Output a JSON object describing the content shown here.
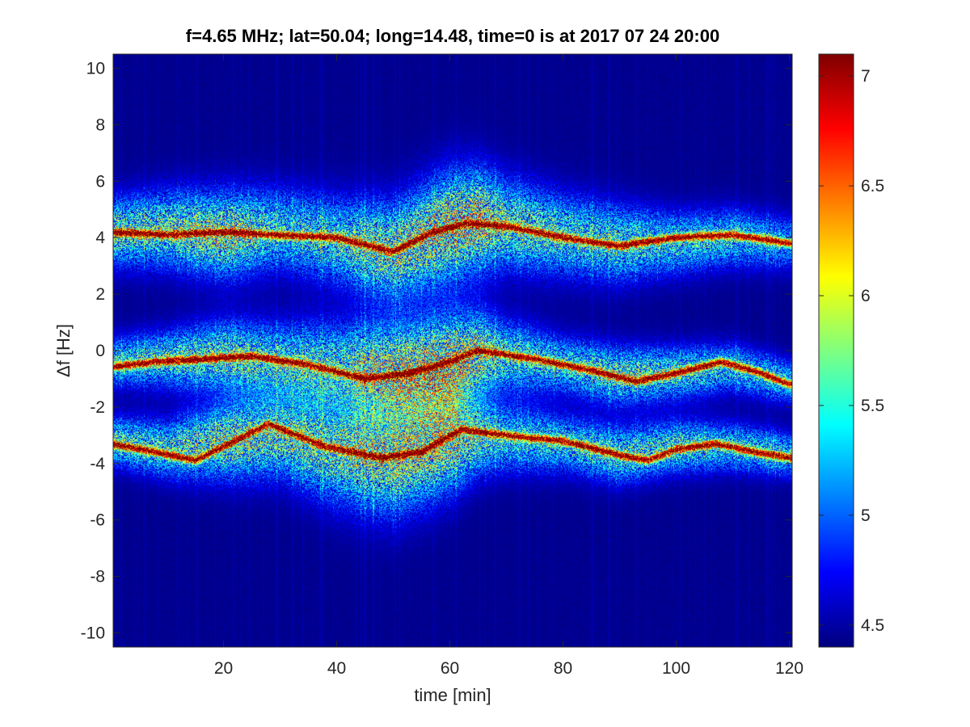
{
  "chart_data": {
    "type": "heatmap",
    "title": "f=4.65 MHz;  lat=50.04; long=14.48, time=0 is at 2017 07 24 20:00",
    "xlabel": "time [min]",
    "ylabel": "Δf [Hz]",
    "xlim": [
      0.5,
      120.5
    ],
    "ylim": [
      -10.5,
      10.5
    ],
    "x_ticks": [
      20,
      40,
      60,
      80,
      100,
      120
    ],
    "y_ticks": [
      -10,
      -8,
      -6,
      -4,
      -2,
      0,
      2,
      4,
      6,
      8,
      10
    ],
    "colorbar": {
      "colormap": "jet",
      "range": [
        4.4,
        7.1
      ],
      "ticks": [
        4.5,
        5,
        5.5,
        6,
        6.5,
        7
      ]
    },
    "traces": [
      {
        "x": [
          0,
          10,
          20,
          28,
          40,
          50,
          57,
          63,
          70,
          80,
          90,
          100,
          110,
          120
        ],
        "y": [
          4.2,
          4.1,
          4.2,
          4.1,
          4.0,
          3.5,
          4.2,
          4.5,
          4.4,
          4.0,
          3.7,
          4.0,
          4.1,
          3.8
        ]
      },
      {
        "x": [
          0,
          8,
          17,
          25,
          35,
          45,
          53,
          60,
          65,
          75,
          85,
          93,
          100,
          108,
          115,
          120
        ],
        "y": [
          -0.6,
          -0.4,
          -0.3,
          -0.2,
          -0.5,
          -1.0,
          -0.8,
          -0.4,
          0.0,
          -0.3,
          -0.7,
          -1.1,
          -0.8,
          -0.4,
          -0.8,
          -1.2
        ]
      },
      {
        "x": [
          0,
          8,
          15,
          22,
          28,
          38,
          48,
          55,
          62,
          70,
          80,
          90,
          95,
          100,
          107,
          114,
          120
        ],
        "y": [
          -3.3,
          -3.6,
          -3.9,
          -3.2,
          -2.6,
          -3.4,
          -3.8,
          -3.6,
          -2.8,
          -3.0,
          -3.2,
          -3.7,
          -3.9,
          -3.5,
          -3.3,
          -3.6,
          -3.8
        ]
      }
    ],
    "cloud": [
      {
        "x": [
          0,
          10,
          20,
          30,
          40,
          50,
          60,
          65,
          70,
          80,
          90,
          100,
          110,
          120
        ],
        "center": [
          4.2,
          4.3,
          4.1,
          4.3,
          3.9,
          3.5,
          4.4,
          4.6,
          4.5,
          4.1,
          3.8,
          3.8,
          4.0,
          3.8
        ],
        "halfwidth": [
          1.4,
          1.6,
          1.8,
          1.7,
          1.8,
          2.1,
          2.3,
          2.2,
          1.9,
          1.7,
          1.6,
          1.3,
          1.2,
          1.1
        ],
        "strength": [
          0.55,
          0.55,
          0.65,
          0.45,
          0.5,
          0.6,
          0.7,
          0.7,
          0.55,
          0.5,
          0.5,
          0.45,
          0.45,
          0.35
        ]
      },
      {
        "x": [
          0,
          10,
          20,
          30,
          40,
          50,
          60,
          65,
          70,
          80,
          90,
          100,
          110,
          120
        ],
        "center": [
          -0.4,
          -0.3,
          -0.2,
          -0.4,
          -0.6,
          -0.8,
          -0.6,
          -0.1,
          -0.2,
          -0.5,
          -0.9,
          -0.8,
          -0.6,
          -1.1
        ],
        "halfwidth": [
          1.0,
          1.2,
          1.5,
          1.6,
          1.9,
          2.1,
          2.2,
          1.8,
          1.5,
          1.2,
          1.2,
          1.1,
          1.0,
          0.9
        ],
        "strength": [
          0.45,
          0.5,
          0.55,
          0.5,
          0.5,
          0.7,
          0.75,
          0.65,
          0.5,
          0.45,
          0.55,
          0.5,
          0.45,
          0.4
        ]
      },
      {
        "x": [
          0,
          10,
          20,
          30,
          40,
          50,
          60,
          65,
          70,
          80,
          90,
          100,
          110,
          120
        ],
        "center": [
          -3.2,
          -3.5,
          -3.2,
          -3.0,
          -3.6,
          -3.8,
          -3.2,
          -3.0,
          -3.1,
          -3.3,
          -3.7,
          -3.4,
          -3.4,
          -3.7
        ],
        "halfwidth": [
          1.0,
          1.2,
          1.6,
          1.8,
          2.2,
          2.4,
          2.2,
          1.7,
          1.4,
          1.2,
          1.2,
          1.1,
          1.0,
          0.9
        ],
        "strength": [
          0.5,
          0.5,
          0.6,
          0.55,
          0.55,
          0.65,
          0.65,
          0.55,
          0.45,
          0.45,
          0.5,
          0.5,
          0.45,
          0.45
        ]
      }
    ]
  }
}
